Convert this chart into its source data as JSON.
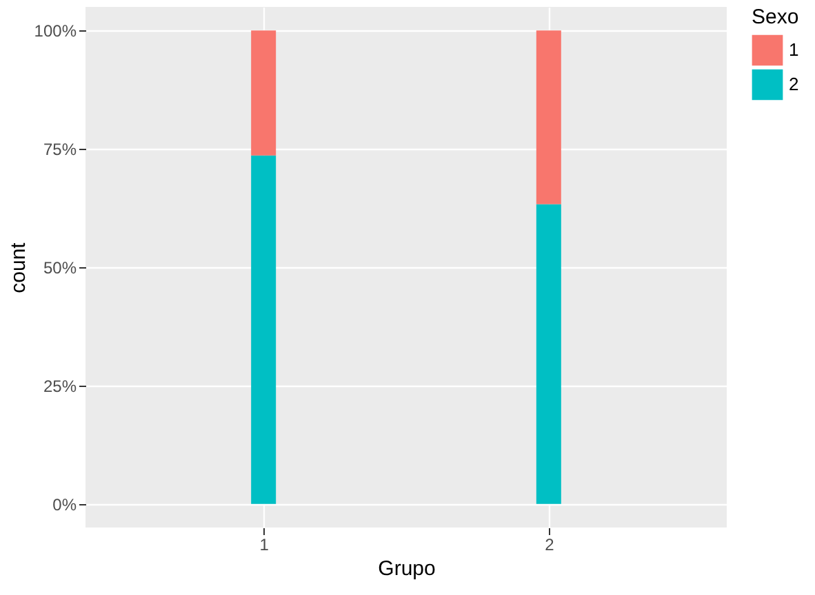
{
  "chart_data": {
    "type": "bar",
    "stacked": true,
    "xlabel": "Grupo",
    "ylabel": "count",
    "legend_title": "Sexo",
    "legend": "right",
    "grid": true,
    "categories": [
      "1",
      "2"
    ],
    "series": [
      {
        "name": "2",
        "color": "#00bfc4",
        "values": [
          73.6,
          63.3
        ]
      },
      {
        "name": "1",
        "color": "#f8766d",
        "values": [
          26.4,
          36.7
        ]
      }
    ],
    "ylim": [
      -5,
      105
    ],
    "yticks": [
      {
        "value": 0,
        "label": "0%"
      },
      {
        "value": 25,
        "label": "25%"
      },
      {
        "value": 50,
        "label": "50%"
      },
      {
        "value": 75,
        "label": "75%"
      },
      {
        "value": 100,
        "label": "100%"
      }
    ]
  }
}
